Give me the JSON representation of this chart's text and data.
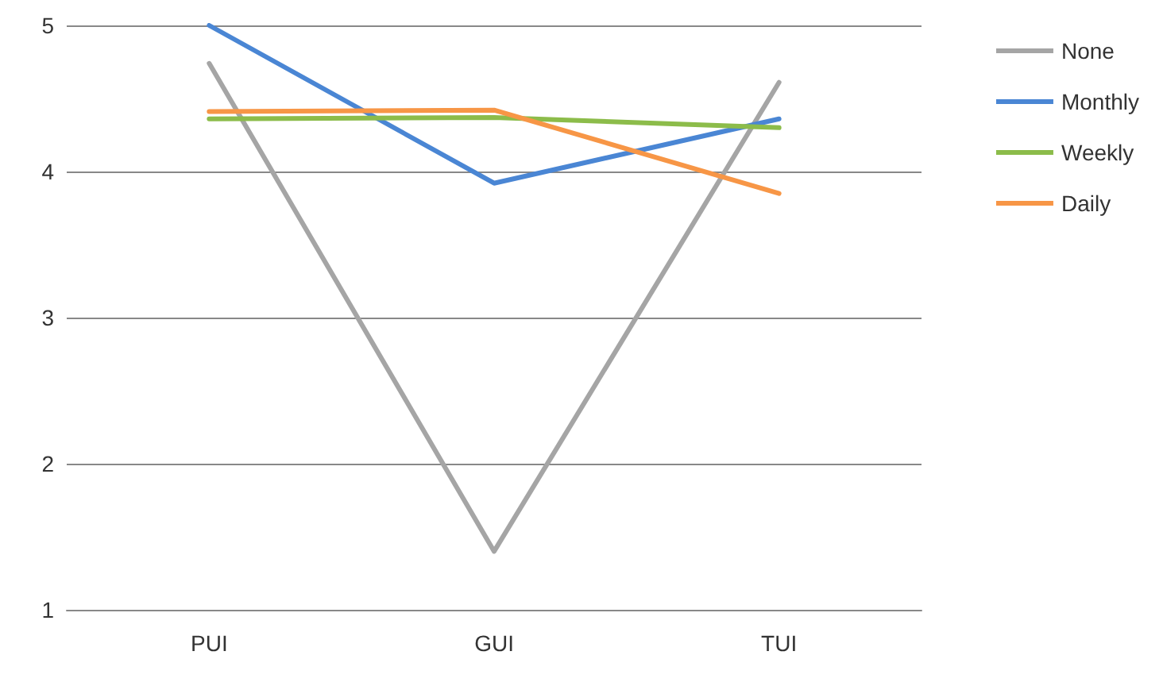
{
  "chart_data": {
    "type": "line",
    "categories": [
      "PUI",
      "GUI",
      "TUI"
    ],
    "series": [
      {
        "name": "None",
        "color": "#a5a5a5",
        "values": [
          4.74,
          1.4,
          4.61
        ]
      },
      {
        "name": "Monthly",
        "color": "#4a86d4",
        "values": [
          5.0,
          3.92,
          4.36
        ]
      },
      {
        "name": "Weekly",
        "color": "#8cbc4a",
        "values": [
          4.36,
          4.37,
          4.3
        ]
      },
      {
        "name": "Daily",
        "color": "#f79646",
        "values": [
          4.41,
          4.42,
          3.85
        ]
      }
    ],
    "ylim": [
      1,
      5
    ],
    "yticks": [
      1,
      2,
      3,
      4,
      5
    ],
    "grid": "y",
    "legend": "right",
    "marker": "none",
    "line_style": "solid"
  }
}
